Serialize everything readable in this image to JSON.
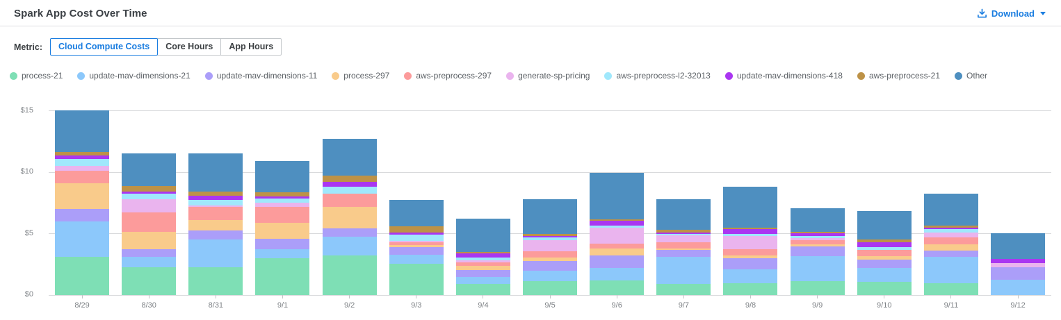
{
  "header": {
    "title": "Spark App Cost Over Time",
    "download_label": "Download"
  },
  "controls": {
    "metric_label": "Metric:",
    "options": [
      {
        "label": "Cloud Compute Costs",
        "selected": true
      },
      {
        "label": "Core Hours",
        "selected": false
      },
      {
        "label": "App Hours",
        "selected": false
      }
    ]
  },
  "colors": {
    "accent_blue": "#1a7de0",
    "grid": "#d9dadc",
    "axis_text": "#83878b",
    "legend_text": "#5c6166"
  },
  "chart_data": {
    "type": "bar",
    "stacked": true,
    "title": "Spark App Cost Over Time",
    "xlabel": "",
    "ylabel": "",
    "ylim": [
      0,
      15.95
    ],
    "grid": true,
    "legend_position": "top",
    "yticks": [
      {
        "value": 0,
        "label": "$0"
      },
      {
        "value": 5,
        "label": "$5"
      },
      {
        "value": 10,
        "label": "$10"
      },
      {
        "value": 15,
        "label": "$15"
      }
    ],
    "categories": [
      "8/29",
      "8/30",
      "8/31",
      "9/1",
      "9/2",
      "9/3",
      "9/4",
      "9/5",
      "9/6",
      "9/7",
      "9/8",
      "9/9",
      "9/10",
      "9/11",
      "9/12"
    ],
    "series": [
      {
        "name": "process-21",
        "color": "#7edfb5",
        "values": [
          3.1,
          2.25,
          2.25,
          3.0,
          3.25,
          2.53,
          0.9,
          1.14,
          1.18,
          0.9,
          0.99,
          1.13,
          1.09,
          0.98,
          0.0
        ]
      },
      {
        "name": "update-mav-dimensions-21",
        "color": "#8cc8fb",
        "values": [
          2.9,
          0.85,
          2.25,
          0.75,
          1.53,
          0.77,
          0.6,
          0.85,
          1.03,
          2.2,
          1.13,
          2.02,
          1.12,
          2.12,
          1.22
        ]
      },
      {
        "name": "update-mav-dimensions-11",
        "color": "#ab9ef9",
        "values": [
          1.0,
          0.66,
          0.75,
          0.85,
          0.66,
          0.6,
          0.53,
          0.79,
          1.04,
          0.56,
          0.88,
          0.79,
          0.7,
          0.5,
          1.03
        ]
      },
      {
        "name": "process-297",
        "color": "#f9cb8b",
        "values": [
          2.1,
          1.4,
          0.88,
          1.27,
          1.75,
          0.17,
          0.37,
          0.28,
          0.56,
          0.15,
          0.25,
          0.19,
          0.28,
          0.51,
          0.0
        ]
      },
      {
        "name": "aws-preprocess-297",
        "color": "#fc9b9b",
        "values": [
          1.0,
          1.6,
          1.06,
          1.31,
          1.08,
          0.21,
          0.27,
          0.5,
          0.37,
          0.47,
          0.46,
          0.34,
          0.47,
          0.56,
          0.0
        ]
      },
      {
        "name": "generate-sp-pricing",
        "color": "#eab4ee",
        "values": [
          0.45,
          1.05,
          0.12,
          0.32,
          0.0,
          0.15,
          0.18,
          0.94,
          1.32,
          0.56,
          1.09,
          0.18,
          0.0,
          0.43,
          0.38
        ]
      },
      {
        "name": "aws-preprocess-l2-32013",
        "color": "#a0e8fc",
        "values": [
          0.55,
          0.45,
          0.42,
          0.38,
          0.56,
          0.52,
          0.19,
          0.19,
          0.18,
          0.15,
          0.19,
          0.19,
          0.25,
          0.25,
          0.0
        ]
      },
      {
        "name": "update-mav-dimensions-418",
        "color": "#aa36f1",
        "values": [
          0.25,
          0.15,
          0.37,
          0.15,
          0.42,
          0.17,
          0.34,
          0.11,
          0.38,
          0.13,
          0.38,
          0.19,
          0.41,
          0.13,
          0.32
        ]
      },
      {
        "name": "aws-preprocess-21",
        "color": "#bd9247",
        "values": [
          0.3,
          0.45,
          0.31,
          0.32,
          0.48,
          0.47,
          0.11,
          0.19,
          0.13,
          0.19,
          0.13,
          0.15,
          0.22,
          0.19,
          0.0
        ]
      },
      {
        "name": "Other",
        "color": "#4e8fc0",
        "values": [
          3.4,
          2.7,
          3.15,
          2.59,
          2.99,
          2.16,
          2.72,
          2.81,
          3.77,
          2.49,
          3.32,
          1.87,
          2.31,
          2.57,
          2.1
        ]
      }
    ]
  }
}
